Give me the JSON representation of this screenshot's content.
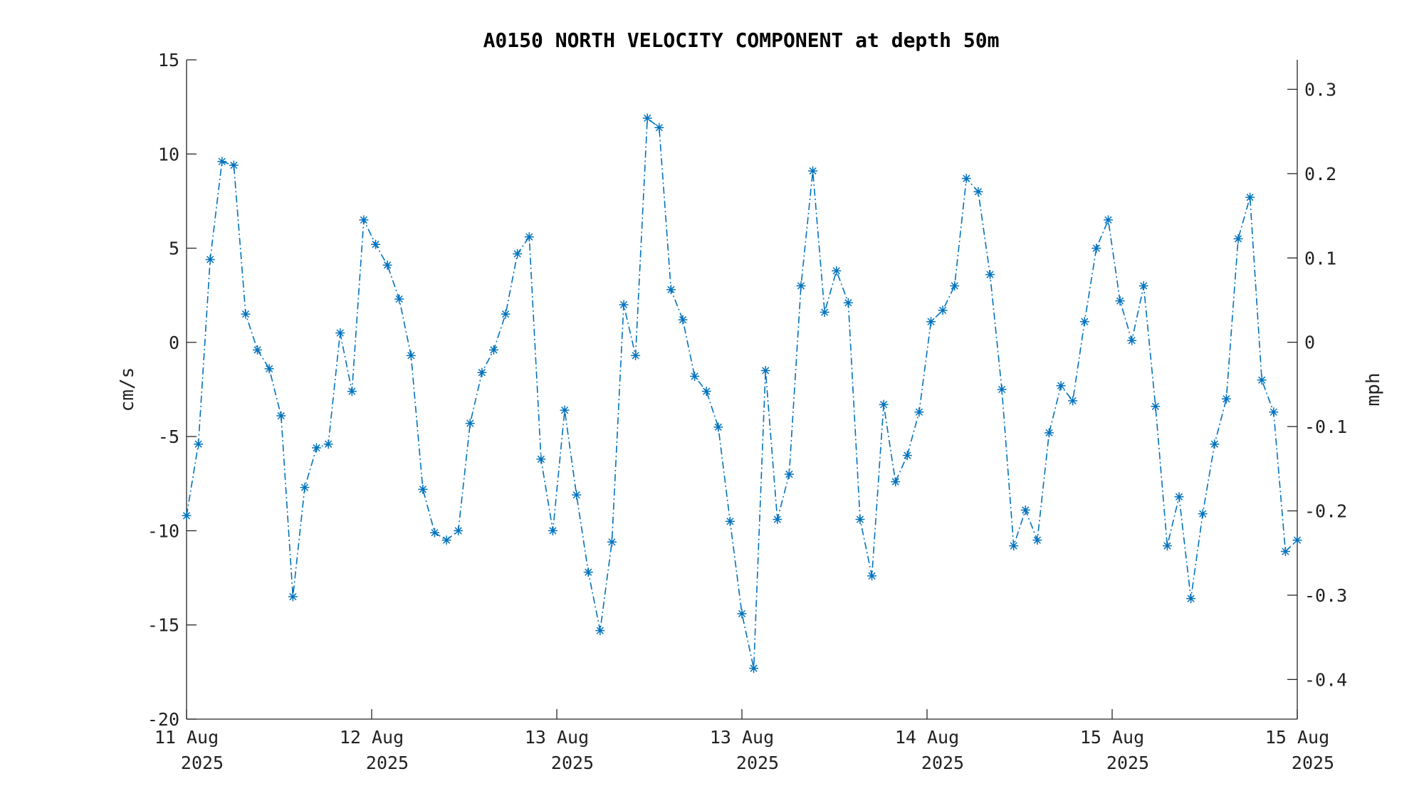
{
  "chart_data": {
    "type": "line",
    "title": "A0150 NORTH VELOCITY COMPONENT at depth 50m",
    "ylabel": "cm/s",
    "ylabel_right": "mph",
    "xlabel": "",
    "ylim": [
      -20,
      15
    ],
    "ylim_right": [
      -0.447,
      0.335
    ],
    "grid": false,
    "legend": "none",
    "line_style": "dash-dot",
    "marker": "asterisk",
    "color": "#0072BD",
    "yticks": [
      "-20",
      "-15",
      "-10",
      "-5",
      "0",
      "5",
      "10",
      "15"
    ],
    "yticks_right": [
      "-0.4",
      "-0.3",
      "-0.2",
      "-0.1",
      "0",
      "0.1",
      "0.2",
      "0.3"
    ],
    "xticks": [
      {
        "line1": "11 Aug",
        "line2": "2025"
      },
      {
        "line1": "12 Aug",
        "line2": "2025"
      },
      {
        "line1": "13 Aug",
        "line2": "2025"
      },
      {
        "line1": "13 Aug",
        "line2": "2025"
      },
      {
        "line1": "14 Aug",
        "line2": "2025"
      },
      {
        "line1": "15 Aug",
        "line2": "2025"
      },
      {
        "line1": "15 Aug",
        "line2": "2025"
      }
    ],
    "values": [
      -9.2,
      -5.4,
      4.4,
      9.6,
      9.4,
      1.5,
      -0.4,
      -1.4,
      -3.9,
      -13.5,
      -7.7,
      -5.6,
      -5.4,
      0.5,
      -2.6,
      6.5,
      5.2,
      4.1,
      2.3,
      -0.7,
      -7.8,
      -10.1,
      -10.5,
      -10.0,
      -4.3,
      -1.6,
      -0.4,
      1.5,
      4.7,
      5.6,
      -6.2,
      -10.0,
      -3.6,
      -8.1,
      -12.2,
      -15.3,
      -10.6,
      2.0,
      -0.7,
      11.9,
      11.4,
      2.8,
      1.2,
      -1.8,
      -2.6,
      -4.5,
      -9.5,
      -14.4,
      -17.3,
      -1.5,
      -9.4,
      -7.0,
      3.0,
      9.1,
      1.6,
      3.8,
      2.1,
      -9.4,
      -12.4,
      -3.3,
      -7.4,
      -6.0,
      -3.7,
      1.1,
      1.7,
      3.0,
      8.7,
      8.0,
      3.6,
      -2.5,
      -10.8,
      -8.9,
      -10.5,
      -4.8,
      -2.3,
      -3.1,
      1.1,
      5.0,
      6.5,
      2.2,
      0.1,
      3.0,
      -3.4,
      -10.8,
      -8.2,
      -13.6,
      -9.1,
      -5.4,
      -3.0,
      5.5,
      7.7,
      -2.0,
      -3.7,
      -11.1,
      -10.5
    ]
  }
}
